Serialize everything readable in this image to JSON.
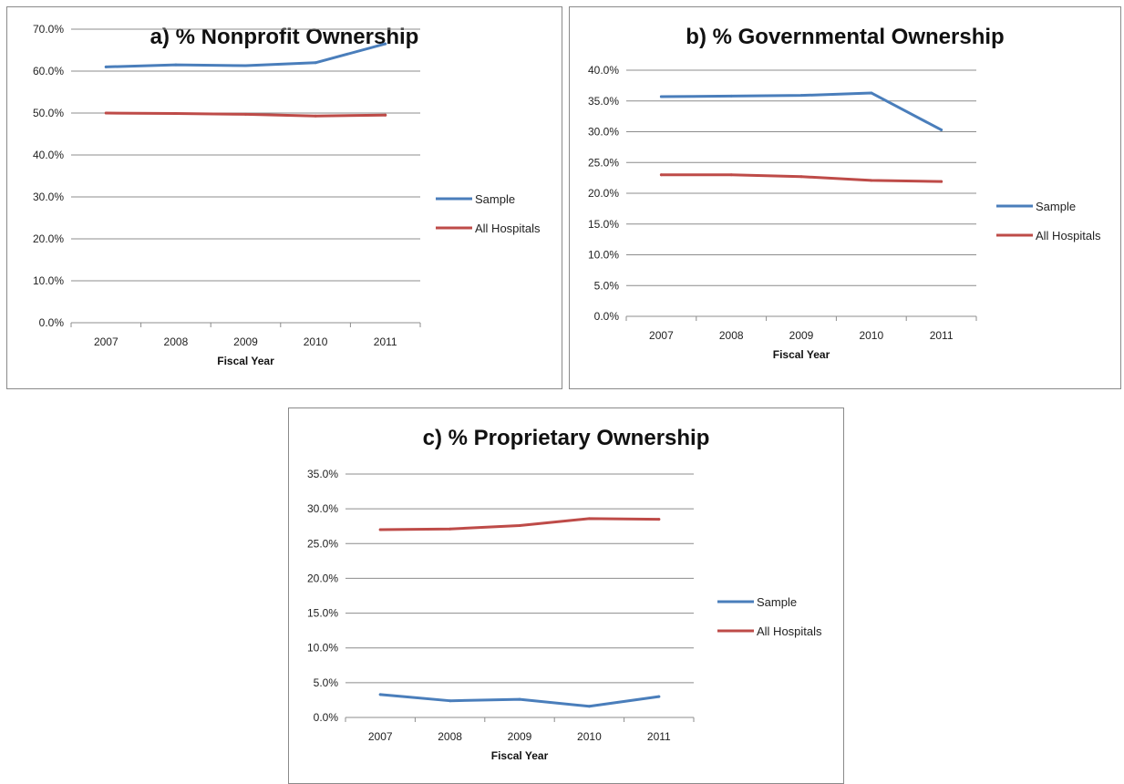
{
  "series_colors": {
    "Sample": "#4a7ebb",
    "All Hospitals": "#be4b48"
  },
  "chart_data": [
    {
      "type": "line",
      "title": "a) % Nonprofit Ownership",
      "xlabel": "Fiscal Year",
      "ylabel": "",
      "categories": [
        "2007",
        "2008",
        "2009",
        "2010",
        "2011"
      ],
      "ylim": [
        0,
        0.7
      ],
      "yticks": [
        0,
        0.1,
        0.2,
        0.3,
        0.4,
        0.5,
        0.6,
        0.7
      ],
      "ytick_labels": [
        "0.0%",
        "10.0%",
        "20.0%",
        "30.0%",
        "40.0%",
        "50.0%",
        "60.0%",
        "70.0%"
      ],
      "grid": true,
      "legend": "right",
      "series": [
        {
          "name": "Sample",
          "values": [
            0.61,
            0.615,
            0.613,
            0.62,
            0.665
          ]
        },
        {
          "name": "All Hospitals",
          "values": [
            0.5,
            0.499,
            0.497,
            0.493,
            0.495
          ]
        }
      ]
    },
    {
      "type": "line",
      "title": "b) % Governmental Ownership",
      "xlabel": "Fiscal Year",
      "ylabel": "",
      "categories": [
        "2007",
        "2008",
        "2009",
        "2010",
        "2011"
      ],
      "ylim": [
        0,
        0.4
      ],
      "yticks": [
        0,
        0.05,
        0.1,
        0.15,
        0.2,
        0.25,
        0.3,
        0.35,
        0.4
      ],
      "ytick_labels": [
        "0.0%",
        "5.0%",
        "10.0%",
        "15.0%",
        "20.0%",
        "25.0%",
        "30.0%",
        "35.0%",
        "40.0%"
      ],
      "grid": true,
      "legend": "right",
      "series": [
        {
          "name": "Sample",
          "values": [
            0.357,
            0.358,
            0.359,
            0.363,
            0.303
          ]
        },
        {
          "name": "All Hospitals",
          "values": [
            0.23,
            0.23,
            0.227,
            0.221,
            0.219
          ]
        }
      ]
    },
    {
      "type": "line",
      "title": "c) % Proprietary Ownership",
      "xlabel": "Fiscal Year",
      "ylabel": "",
      "categories": [
        "2007",
        "2008",
        "2009",
        "2010",
        "2011"
      ],
      "ylim": [
        0,
        0.35
      ],
      "yticks": [
        0,
        0.05,
        0.1,
        0.15,
        0.2,
        0.25,
        0.3,
        0.35
      ],
      "ytick_labels": [
        "0.0%",
        "5.0%",
        "10.0%",
        "15.0%",
        "20.0%",
        "25.0%",
        "30.0%",
        "35.0%"
      ],
      "grid": true,
      "legend": "right",
      "series": [
        {
          "name": "Sample",
          "values": [
            0.033,
            0.024,
            0.026,
            0.016,
            0.03
          ]
        },
        {
          "name": "All Hospitals",
          "values": [
            0.27,
            0.271,
            0.276,
            0.286,
            0.285
          ]
        }
      ]
    }
  ]
}
